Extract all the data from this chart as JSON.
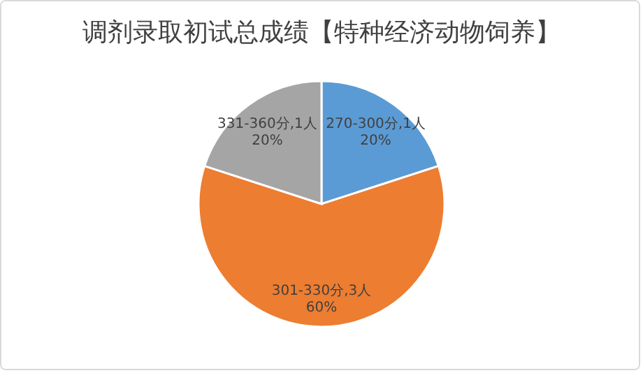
{
  "chart_data": {
    "type": "pie",
    "title": "调剂录取初试总成绩【特种经济动物饲养】",
    "categories": [
      "270-300分",
      "301-330分",
      "331-360分"
    ],
    "values": [
      1,
      3,
      1
    ],
    "colors": [
      "#5b9bd5",
      "#ed7d31",
      "#a5a5a5"
    ],
    "value_labels": [
      "1人\n20%",
      "3人\n60%",
      "1人\n20%"
    ]
  }
}
